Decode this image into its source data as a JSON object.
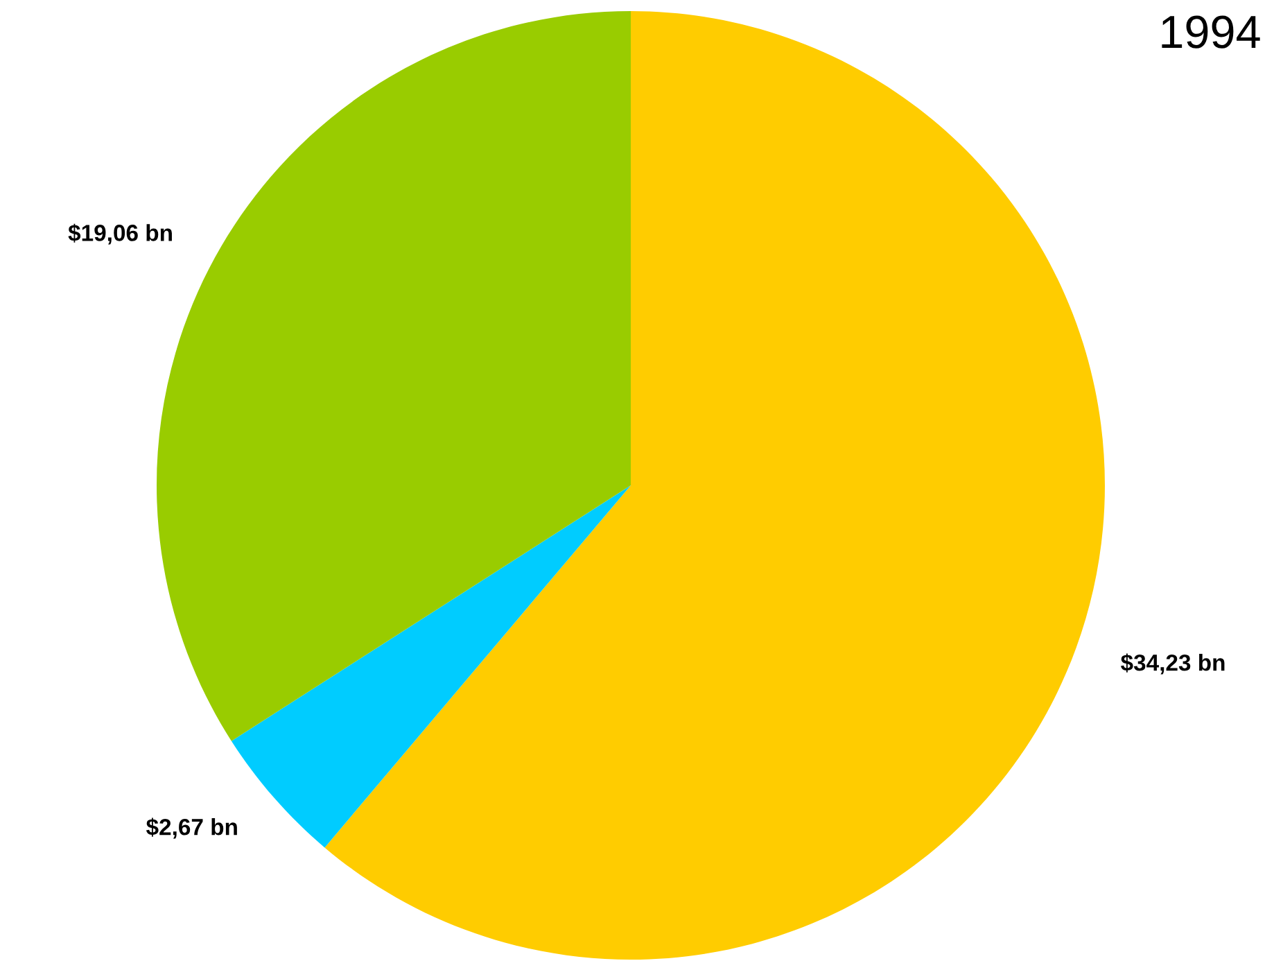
{
  "chart_data": {
    "type": "pie",
    "title": "1994",
    "categories": [
      null,
      null,
      null
    ],
    "values": [
      34.23,
      2.67,
      19.06
    ],
    "colors": [
      "#ffcc00",
      "#00ccff",
      "#99cc00"
    ],
    "value_labels": [
      "$34,23 bn",
      "$2,67 bn",
      "$19,06 bn"
    ]
  }
}
